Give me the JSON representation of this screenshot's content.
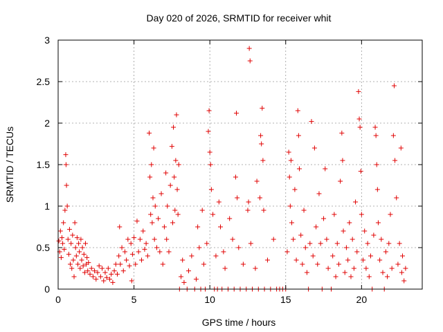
{
  "chart_data": {
    "type": "scatter",
    "title": "Day 020 of 2026, SRMTID for receiver whit",
    "xlabel": "GPS time / hours",
    "ylabel": "SRMTID / TECUs",
    "xlim": [
      0,
      24
    ],
    "ylim": [
      0,
      3
    ],
    "xticks": [
      0,
      5,
      10,
      15,
      20
    ],
    "xtick_labels": [
      "0",
      "5",
      "10",
      "15",
      "20"
    ],
    "yticks": [
      0,
      0.5,
      1,
      1.5,
      2,
      2.5,
      3
    ],
    "ytick_labels": [
      "0",
      "0.5",
      "1",
      "1.5",
      "2",
      "2.5",
      "3"
    ],
    "grid": true,
    "marker": "+",
    "series": [
      {
        "name": "SRMTID",
        "color": "#e00000",
        "points": [
          [
            0.05,
            0.58
          ],
          [
            0.1,
            0.45
          ],
          [
            0.15,
            0.7
          ],
          [
            0.2,
            0.38
          ],
          [
            0.25,
            0.62
          ],
          [
            0.3,
            0.55
          ],
          [
            0.35,
            0.8
          ],
          [
            0.4,
            0.48
          ],
          [
            0.45,
            0.95
          ],
          [
            0.5,
            1.62
          ],
          [
            0.52,
            1.5
          ],
          [
            0.55,
            1.25
          ],
          [
            0.6,
            1.0
          ],
          [
            0.65,
            0.6
          ],
          [
            0.7,
            0.42
          ],
          [
            0.75,
            0.72
          ],
          [
            0.8,
            0.3
          ],
          [
            0.85,
            0.55
          ],
          [
            0.9,
            0.25
          ],
          [
            0.95,
            0.65
          ],
          [
            1.0,
            0.35
          ],
          [
            1.05,
            0.15
          ],
          [
            1.1,
            0.8
          ],
          [
            1.15,
            0.5
          ],
          [
            1.2,
            0.4
          ],
          [
            1.25,
            0.62
          ],
          [
            1.3,
            0.3
          ],
          [
            1.35,
            0.55
          ],
          [
            1.4,
            0.45
          ],
          [
            1.45,
            0.25
          ],
          [
            1.5,
            0.6
          ],
          [
            1.55,
            0.35
          ],
          [
            1.6,
            0.5
          ],
          [
            1.65,
            0.28
          ],
          [
            1.7,
            0.42
          ],
          [
            1.75,
            0.2
          ],
          [
            1.8,
            0.55
          ],
          [
            1.85,
            0.3
          ],
          [
            1.9,
            0.38
          ],
          [
            1.95,
            0.22
          ],
          [
            2.0,
            0.32
          ],
          [
            2.1,
            0.18
          ],
          [
            2.2,
            0.25
          ],
          [
            2.3,
            0.15
          ],
          [
            2.4,
            0.22
          ],
          [
            2.5,
            0.12
          ],
          [
            2.6,
            0.2
          ],
          [
            2.7,
            0.28
          ],
          [
            2.8,
            0.15
          ],
          [
            2.9,
            0.25
          ],
          [
            3.0,
            0.1
          ],
          [
            3.1,
            0.2
          ],
          [
            3.2,
            0.14
          ],
          [
            3.3,
            0.25
          ],
          [
            3.4,
            0.12
          ],
          [
            3.5,
            0.18
          ],
          [
            3.6,
            0.08
          ],
          [
            3.7,
            0.22
          ],
          [
            3.8,
            0.3
          ],
          [
            3.9,
            0.18
          ],
          [
            4.0,
            0.4
          ],
          [
            4.05,
            0.75
          ],
          [
            4.1,
            0.3
          ],
          [
            4.2,
            0.5
          ],
          [
            4.3,
            0.22
          ],
          [
            4.4,
            0.45
          ],
          [
            4.5,
            0.35
          ],
          [
            4.6,
            0.6
          ],
          [
            4.7,
            0.28
          ],
          [
            4.8,
            0.55
          ],
          [
            4.85,
            0.1
          ],
          [
            4.9,
            0.42
          ],
          [
            5.0,
            0.62
          ],
          [
            5.1,
            0.3
          ],
          [
            5.2,
            0.82
          ],
          [
            5.3,
            0.45
          ],
          [
            5.4,
            0.6
          ],
          [
            5.5,
            0.35
          ],
          [
            5.6,
            0.7
          ],
          [
            5.7,
            0.48
          ],
          [
            5.8,
            0.55
          ],
          [
            5.9,
            0.4
          ],
          [
            6.0,
            1.88
          ],
          [
            6.05,
            1.35
          ],
          [
            6.1,
            0.9
          ],
          [
            6.15,
            1.5
          ],
          [
            6.2,
            0.8
          ],
          [
            6.25,
            1.1
          ],
          [
            6.3,
            1.7
          ],
          [
            6.35,
            0.6
          ],
          [
            6.4,
            1.0
          ],
          [
            6.5,
            0.5
          ],
          [
            6.6,
            0.85
          ],
          [
            6.7,
            0.45
          ],
          [
            6.8,
            1.15
          ],
          [
            6.9,
            0.3
          ],
          [
            7.0,
            0.75
          ],
          [
            7.1,
            1.4
          ],
          [
            7.15,
            0.6
          ],
          [
            7.2,
            1.0
          ],
          [
            7.3,
            0.45
          ],
          [
            7.4,
            1.25
          ],
          [
            7.5,
            1.72
          ],
          [
            7.55,
            0.8
          ],
          [
            7.6,
            1.95
          ],
          [
            7.65,
            1.35
          ],
          [
            7.7,
            0.95
          ],
          [
            7.75,
            1.55
          ],
          [
            7.8,
            2.1
          ],
          [
            7.85,
            1.2
          ],
          [
            7.9,
            0.9
          ],
          [
            7.95,
            1.5
          ],
          [
            8.0,
            0.0
          ],
          [
            8.1,
            0.15
          ],
          [
            8.2,
            0.35
          ],
          [
            8.3,
            0.08
          ],
          [
            8.5,
            0.0
          ],
          [
            8.6,
            0.22
          ],
          [
            8.8,
            0.4
          ],
          [
            9.0,
            0.0
          ],
          [
            9.1,
            0.12
          ],
          [
            9.2,
            0.75
          ],
          [
            9.3,
            0.5
          ],
          [
            9.4,
            0.0
          ],
          [
            9.5,
            0.95
          ],
          [
            9.6,
            0.3
          ],
          [
            9.7,
            0.0
          ],
          [
            9.8,
            0.55
          ],
          [
            9.9,
            1.9
          ],
          [
            9.95,
            2.15
          ],
          [
            10.0,
            1.65
          ],
          [
            10.05,
            1.5
          ],
          [
            10.1,
            1.2
          ],
          [
            10.2,
            0.9
          ],
          [
            10.3,
            0.0
          ],
          [
            10.4,
            0.4
          ],
          [
            10.5,
            0.0
          ],
          [
            10.6,
            1.05
          ],
          [
            10.7,
            0.75
          ],
          [
            10.8,
            0.0
          ],
          [
            10.9,
            0.45
          ],
          [
            11.0,
            0.25
          ],
          [
            11.2,
            0.0
          ],
          [
            11.3,
            0.85
          ],
          [
            11.5,
            0.6
          ],
          [
            11.6,
            0.0
          ],
          [
            11.7,
            1.35
          ],
          [
            11.75,
            2.12
          ],
          [
            11.8,
            1.1
          ],
          [
            11.9,
            0.5
          ],
          [
            12.0,
            0.0
          ],
          [
            12.2,
            0.3
          ],
          [
            12.4,
            0.0
          ],
          [
            12.5,
            0.95
          ],
          [
            12.55,
            1.05
          ],
          [
            12.6,
            2.9
          ],
          [
            12.65,
            2.75
          ],
          [
            12.7,
            0.55
          ],
          [
            12.8,
            0.0
          ],
          [
            13.0,
            0.25
          ],
          [
            13.1,
            1.3
          ],
          [
            13.2,
            0.0
          ],
          [
            13.3,
            1.1
          ],
          [
            13.35,
            1.85
          ],
          [
            13.4,
            1.75
          ],
          [
            13.45,
            2.18
          ],
          [
            13.5,
            1.55
          ],
          [
            13.55,
            0.95
          ],
          [
            13.6,
            0.0
          ],
          [
            13.8,
            0.35
          ],
          [
            14.0,
            0.0
          ],
          [
            14.2,
            0.6
          ],
          [
            14.4,
            0.0
          ],
          [
            14.6,
            0.0
          ],
          [
            14.8,
            0.0
          ],
          [
            15.0,
            0.0
          ],
          [
            15.1,
            0.45
          ],
          [
            15.2,
            1.65
          ],
          [
            15.25,
            1.35
          ],
          [
            15.3,
            1.0
          ],
          [
            15.35,
            1.55
          ],
          [
            15.4,
            0.8
          ],
          [
            15.5,
            0.6
          ],
          [
            15.6,
            1.2
          ],
          [
            15.7,
            0.35
          ],
          [
            15.8,
            2.15
          ],
          [
            15.85,
            1.85
          ],
          [
            15.9,
            1.45
          ],
          [
            16.0,
            0.65
          ],
          [
            16.1,
            0.3
          ],
          [
            16.2,
            0.95
          ],
          [
            16.3,
            0.5
          ],
          [
            16.4,
            0.2
          ],
          [
            16.5,
            0.0
          ],
          [
            16.6,
            0.55
          ],
          [
            16.7,
            2.02
          ],
          [
            16.8,
            0.4
          ],
          [
            16.9,
            1.7
          ],
          [
            17.0,
            0.75
          ],
          [
            17.1,
            0.3
          ],
          [
            17.2,
            1.15
          ],
          [
            17.3,
            0.55
          ],
          [
            17.4,
            0.0
          ],
          [
            17.5,
            0.85
          ],
          [
            17.6,
            1.45
          ],
          [
            17.7,
            0.6
          ],
          [
            17.8,
            0.25
          ],
          [
            18.0,
            0.0
          ],
          [
            18.1,
            0.4
          ],
          [
            18.2,
            0.9
          ],
          [
            18.3,
            0.15
          ],
          [
            18.4,
            0.55
          ],
          [
            18.5,
            0.3
          ],
          [
            18.6,
            1.3
          ],
          [
            18.7,
            1.88
          ],
          [
            18.75,
            1.55
          ],
          [
            18.8,
            0.7
          ],
          [
            18.9,
            0.2
          ],
          [
            19.0,
            0.5
          ],
          [
            19.1,
            0.35
          ],
          [
            19.2,
            0.8
          ],
          [
            19.3,
            0.15
          ],
          [
            19.4,
            0.6
          ],
          [
            19.5,
            0.25
          ],
          [
            19.6,
            1.05
          ],
          [
            19.7,
            0.45
          ],
          [
            19.8,
            2.38
          ],
          [
            19.85,
            2.05
          ],
          [
            19.9,
            1.95
          ],
          [
            19.95,
            1.42
          ],
          [
            20.0,
            0.9
          ],
          [
            20.1,
            0.35
          ],
          [
            20.2,
            0.7
          ],
          [
            20.3,
            0.25
          ],
          [
            20.4,
            0.55
          ],
          [
            20.5,
            0.15
          ],
          [
            20.6,
            0.4
          ],
          [
            20.7,
            0.0
          ],
          [
            20.8,
            0.65
          ],
          [
            20.9,
            1.95
          ],
          [
            20.95,
            1.85
          ],
          [
            21.0,
            1.5
          ],
          [
            21.05,
            1.2
          ],
          [
            21.1,
            0.8
          ],
          [
            21.2,
            0.35
          ],
          [
            21.3,
            0.6
          ],
          [
            21.4,
            0.2
          ],
          [
            21.5,
            0.0
          ],
          [
            21.6,
            0.45
          ],
          [
            21.7,
            0.15
          ],
          [
            21.8,
            0.55
          ],
          [
            21.9,
            0.9
          ],
          [
            22.0,
            0.25
          ],
          [
            22.1,
            1.85
          ],
          [
            22.15,
            2.45
          ],
          [
            22.2,
            1.55
          ],
          [
            22.3,
            1.1
          ],
          [
            22.4,
            0.3
          ],
          [
            22.5,
            0.55
          ],
          [
            22.6,
            1.7
          ],
          [
            22.65,
            0.2
          ],
          [
            22.7,
            0.4
          ],
          [
            22.8,
            0.1
          ],
          [
            22.9,
            0.25
          ]
        ]
      }
    ]
  }
}
